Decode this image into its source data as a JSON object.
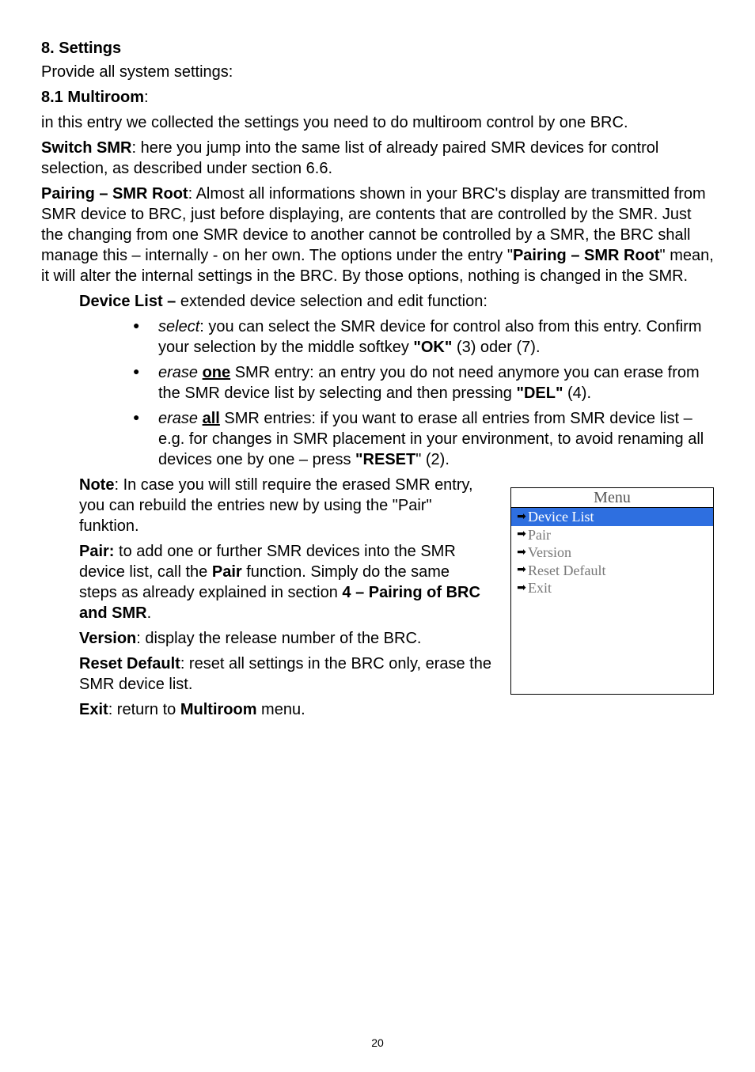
{
  "section": {
    "heading": "8. Settings",
    "intro": "Provide all system settings:",
    "sub_heading": "8.1 Multiroom",
    "sub_colon": ":",
    "sub_intro": "in this entry we collected the settings you need to do multiroom control by one BRC.",
    "switch_label": "Switch SMR",
    "switch_text": ": here you jump into the same list of already paired SMR devices for control selection, as described under section 6.6.",
    "pairing_label": "Pairing – SMR Root",
    "pairing_text_1": ": Almost all informations shown in your BRC's display are transmitted from SMR device to BRC, just before displaying, are contents that are controlled by the SMR. Just the changing from one SMR device to another cannot be controlled by a SMR, the BRC shall manage this – internally - on her own. The options under the entry \"",
    "pairing_bold_inline": "Pairing – SMR Root",
    "pairing_text_2": "\" mean, it will alter the internal settings in the BRC. By those options, nothing is changed in the SMR.",
    "device_list_label": "Device List – ",
    "device_list_text": "extended device selection and edit function:",
    "bullets": [
      {
        "em": "select",
        "rest_1": ": you can select the SMR device for control also from this entry. Confirm your selection by the middle softkey ",
        "bold_1": "\"OK\"",
        "rest_2": " (3) oder (7)."
      },
      {
        "em": "erase ",
        "under": "one",
        "rest_1": " SMR entry: an entry you do not need anymore you can erase from the SMR device list by selecting and then pressing ",
        "bold_1": "\"DEL\"",
        "rest_2": " (4)."
      },
      {
        "em": "erase ",
        "under": "all",
        "rest_1": " SMR entries: if you want to erase all entries from SMR device list   – e.g. for changes in SMR placement in your environment, to avoid renaming all devices one by one – press ",
        "bold_1": "\"RESET",
        "rest_2": "\" (2)."
      }
    ],
    "note_label": "Note",
    "note_text": ": In case you will still require the erased SMR entry, you can rebuild the entries new by using the \"Pair\" funktion.",
    "pair_label": "Pair:",
    "pair_text_1": " to add one or further SMR devices into the SMR device list, call the ",
    "pair_bold": "Pair",
    "pair_text_2": " function. Simply do the same steps as already explained in section ",
    "pair_bold_2": "4 – Pairing of BRC and SMR",
    "pair_text_3": ".",
    "version_label": "Version",
    "version_text": ": display the release number of the BRC.",
    "reset_label": "Reset Default",
    "reset_text": ": reset all settings in the BRC only, erase the SMR device list.",
    "exit_label": "Exit",
    "exit_text_1": ": return to ",
    "exit_bold": "Multiroom",
    "exit_text_2": " menu."
  },
  "menu": {
    "title": "Menu",
    "items": [
      {
        "label": "Device List",
        "selected": true
      },
      {
        "label": "Pair",
        "selected": false
      },
      {
        "label": "Version",
        "selected": false
      },
      {
        "label": "Reset Default",
        "selected": false
      },
      {
        "label": "Exit",
        "selected": false
      }
    ],
    "selected_bg": "#2e6fe0"
  },
  "page_number": "20"
}
